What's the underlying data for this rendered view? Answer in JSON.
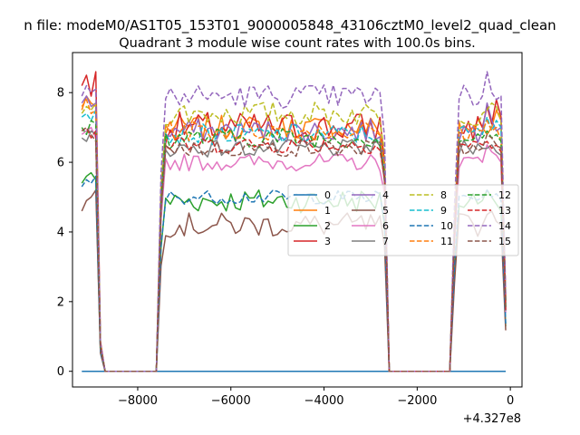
{
  "suptitle": "n file: modeM0/AS1T05_153T01_9000005848_43106cztM0_level2_quad_clean",
  "chart_data": {
    "type": "line",
    "title": "Quadrant 3 module wise count rates with 100.0s bins.",
    "xlabel": "",
    "ylabel": "",
    "x_offset_text": "+4.327e8",
    "xlim": [
      -9400,
      250
    ],
    "ylim": [
      -0.45,
      9.15
    ],
    "x_ticks": [
      -8000,
      -6000,
      -4000,
      -2000,
      0
    ],
    "x_tick_labels": [
      "−8000",
      "−6000",
      "−4000",
      "−2000",
      "0"
    ],
    "y_ticks": [
      0,
      2,
      4,
      6,
      8
    ],
    "y_tick_labels": [
      "0",
      "2",
      "4",
      "6",
      "8"
    ],
    "grid": false,
    "legend_position": "center-right",
    "legend_ncol": 4,
    "x_range": {
      "start": -9200,
      "step": 100,
      "count": 92
    },
    "segments": [
      {
        "name": "off-1",
        "from": -8700,
        "to": -7600,
        "value": 0
      },
      {
        "name": "off-2",
        "from": -2600,
        "to": -1300,
        "value": 0
      }
    ],
    "series": [
      {
        "name": "0",
        "color": "#1f77b4",
        "dash": "solid",
        "zero_series": true
      },
      {
        "name": "1",
        "color": "#ff7f0e",
        "dash": "solid",
        "edge1": [
          7.5,
          7.9,
          7.7,
          7.6
        ],
        "mid": 7.0,
        "edge3": [
          6.8,
          7.0,
          7.5,
          7.2
        ],
        "amp": 0.35
      },
      {
        "name": "2",
        "color": "#2ca02c",
        "dash": "solid",
        "edge1": [
          5.4,
          5.6,
          5.7,
          5.5
        ],
        "mid": 4.9,
        "edge3": [
          5.2,
          5.0,
          4.8,
          4.6
        ],
        "amp": 0.35
      },
      {
        "name": "3",
        "color": "#d62728",
        "dash": "solid",
        "edge1": [
          8.2,
          8.5,
          7.9,
          8.6
        ],
        "mid": 7.0,
        "edge3": [
          7.6,
          7.1,
          7.8,
          7.3
        ],
        "amp": 0.45
      },
      {
        "name": "4",
        "color": "#9467bd",
        "dash": "solid",
        "edge1": [
          7.7,
          7.9,
          7.6,
          7.7
        ],
        "mid": 6.9,
        "edge3": [
          7.7,
          7.2,
          6.9,
          7.0
        ],
        "amp": 0.35
      },
      {
        "name": "5",
        "color": "#8c564b",
        "dash": "solid",
        "edge1": [
          4.6,
          4.9,
          5.0,
          5.2
        ],
        "mid": 4.2,
        "edge3": [
          4.5,
          4.6,
          4.3,
          4.2
        ],
        "amp": 0.35
      },
      {
        "name": "6",
        "color": "#e377c2",
        "dash": "solid",
        "edge1": [
          6.8,
          6.9,
          7.0,
          6.7
        ],
        "mid": 6.0,
        "edge3": [
          6.5,
          6.3,
          6.2,
          6.0
        ],
        "amp": 0.25
      },
      {
        "name": "7",
        "color": "#7f7f7f",
        "dash": "solid",
        "edge1": [
          6.7,
          6.6,
          6.9,
          6.8
        ],
        "mid": 6.4,
        "edge3": [
          6.4,
          6.5,
          6.3,
          6.2
        ],
        "amp": 0.25
      },
      {
        "name": "8",
        "color": "#bcbd22",
        "dash": "dashed",
        "edge1": [
          7.4,
          7.6,
          7.5,
          7.7
        ],
        "mid": 7.4,
        "edge3": [
          7.5,
          7.7,
          7.6,
          7.2
        ],
        "amp": 0.35
      },
      {
        "name": "9",
        "color": "#17becf",
        "dash": "dashed",
        "edge1": [
          7.3,
          7.4,
          7.2,
          7.5
        ],
        "mid": 6.8,
        "edge3": [
          7.3,
          6.9,
          7.2,
          7.0
        ],
        "amp": 0.3
      },
      {
        "name": "10",
        "color": "#1f77b4",
        "dash": "dashed",
        "edge1": [
          5.3,
          5.5,
          5.4,
          5.6
        ],
        "mid": 5.0,
        "edge3": [
          5.2,
          5.0,
          5.1,
          4.9
        ],
        "amp": 0.2
      },
      {
        "name": "11",
        "color": "#ff7f0e",
        "dash": "dashed",
        "edge1": [
          7.6,
          7.8,
          7.4,
          7.5
        ],
        "mid": 6.9,
        "edge3": [
          7.2,
          6.9,
          7.0,
          6.6
        ],
        "amp": 0.3
      },
      {
        "name": "12",
        "color": "#2ca02c",
        "dash": "dashed",
        "edge1": [
          7.0,
          6.8,
          7.2,
          7.1
        ],
        "mid": 6.7,
        "edge3": [
          6.9,
          6.7,
          6.8,
          6.6
        ],
        "amp": 0.3
      },
      {
        "name": "13",
        "color": "#d62728",
        "dash": "dashed",
        "edge1": [
          6.9,
          7.0,
          6.7,
          6.9
        ],
        "mid": 6.5,
        "edge3": [
          6.6,
          6.4,
          6.5,
          6.3
        ],
        "amp": 0.25
      },
      {
        "name": "14",
        "color": "#9467bd",
        "dash": "dashed",
        "edge1": [
          7.9,
          8.2,
          8.0,
          8.1
        ],
        "mid": 7.9,
        "edge3": [
          8.6,
          8.0,
          7.8,
          7.9
        ],
        "amp": 0.35
      },
      {
        "name": "15",
        "color": "#8c564b",
        "dash": "dashed",
        "edge1": [
          6.9,
          7.0,
          6.8,
          6.6
        ],
        "mid": 6.4,
        "edge3": [
          6.8,
          6.7,
          6.5,
          6.4
        ],
        "amp": 0.25
      }
    ]
  }
}
